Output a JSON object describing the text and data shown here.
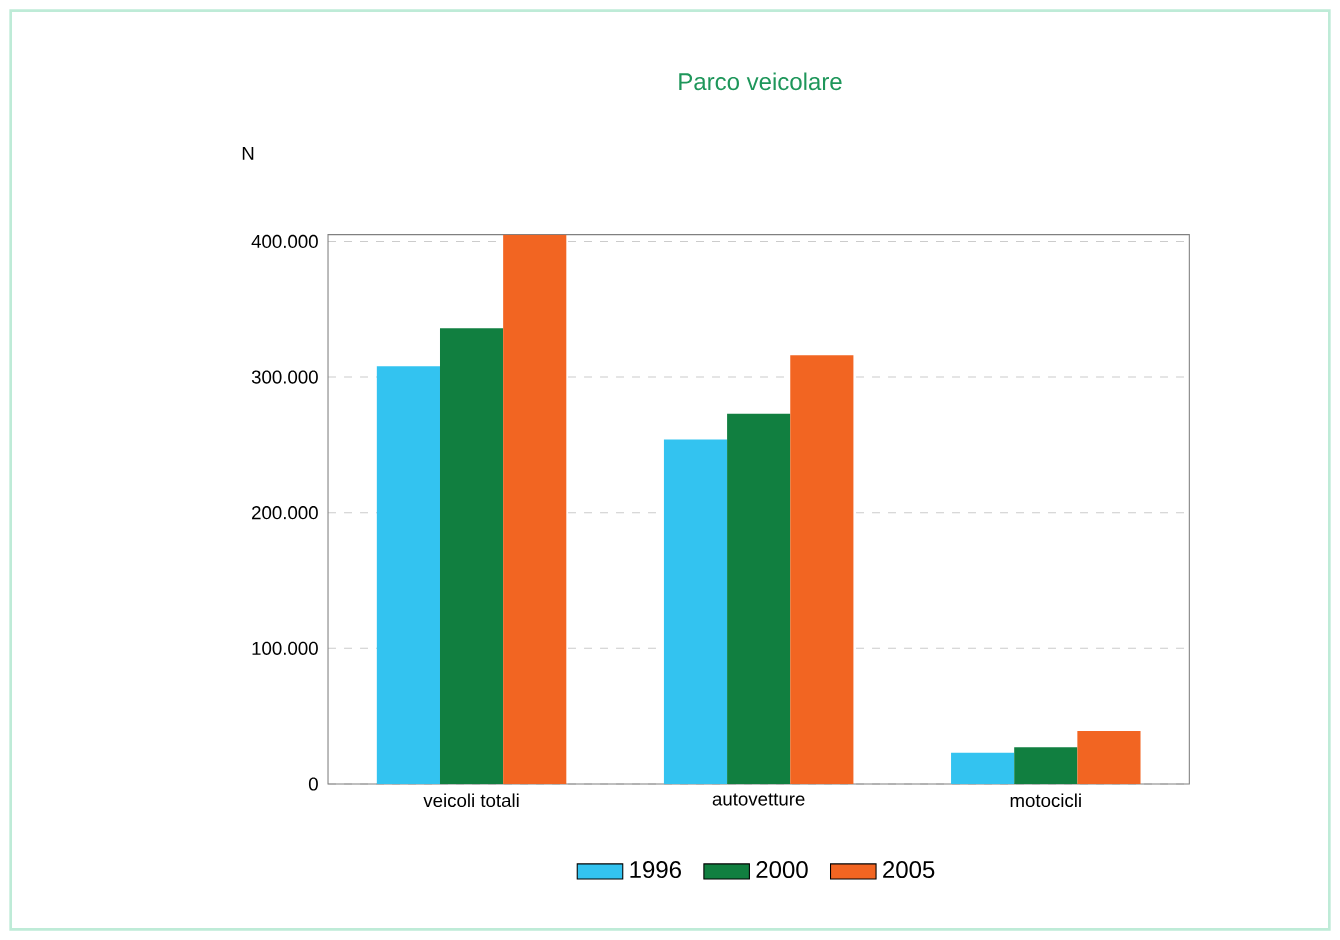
{
  "chart_data": {
    "type": "bar",
    "title": "Parco veicolare",
    "ylabel": "N",
    "categories": [
      "veicoli totali",
      "autovetture",
      "motocicli"
    ],
    "series": [
      {
        "name": "1996",
        "color": "#33c3f0",
        "values": [
          308000,
          254000,
          23000
        ]
      },
      {
        "name": "2000",
        "color": "#117f40",
        "values": [
          336000,
          273000,
          27000
        ]
      },
      {
        "name": "2005",
        "color": "#f26522",
        "values": [
          405000,
          316000,
          39000
        ]
      }
    ],
    "ylim": [
      0,
      405000
    ],
    "yticks": [
      0,
      {
        "value": 100000,
        "label": "100.000"
      },
      {
        "value": 200000,
        "label": "200.000"
      },
      {
        "value": 300000,
        "label": "300.000"
      },
      {
        "value": 400000,
        "label": "400.000"
      }
    ],
    "grid": "y",
    "legend": "bottom"
  }
}
